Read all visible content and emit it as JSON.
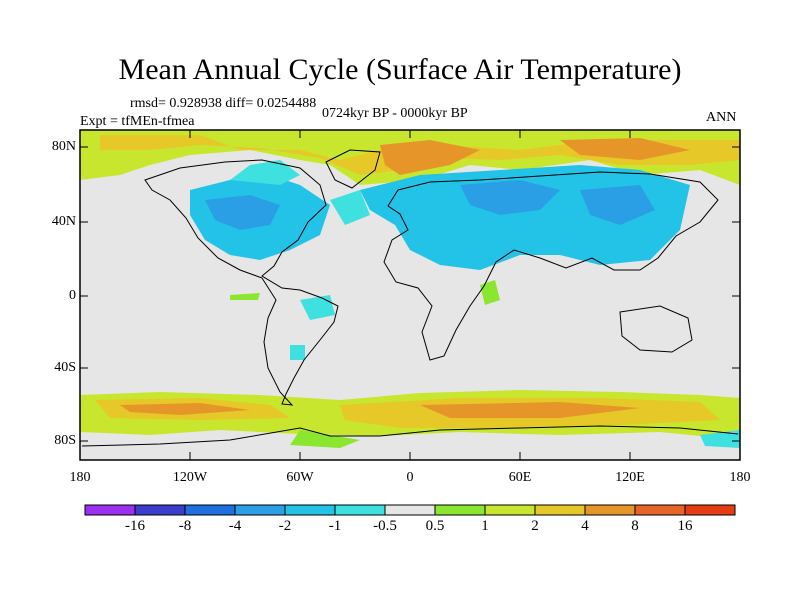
{
  "title": "Mean Annual Cycle (Surface Air Temperature)",
  "stats": "rmsd= 0.928938 diff= 0.0254488",
  "experiment": "Expt = tfMEn-tfmea",
  "period": "0724kyr BP - 0000kyr BP",
  "season": "ANN",
  "lat_labels": [
    "80N",
    "40N",
    "0",
    "40S",
    "80S"
  ],
  "lon_labels": [
    "180",
    "120W",
    "60W",
    "0",
    "60E",
    "120E",
    "180"
  ],
  "colorbar": {
    "labels": [
      "-16",
      "-8",
      "-4",
      "-2",
      "-1",
      "-0.5",
      "0.5",
      "1",
      "2",
      "4",
      "8",
      "16"
    ],
    "colors": [
      "#9b30f0",
      "#3c3ccd",
      "#1f6fe0",
      "#2b9fe6",
      "#22c3e6",
      "#3ee0e0",
      "#e6e6e6",
      "#8ae62e",
      "#c8e62e",
      "#e6c828",
      "#e69628",
      "#e66428",
      "#e63c14"
    ]
  }
}
